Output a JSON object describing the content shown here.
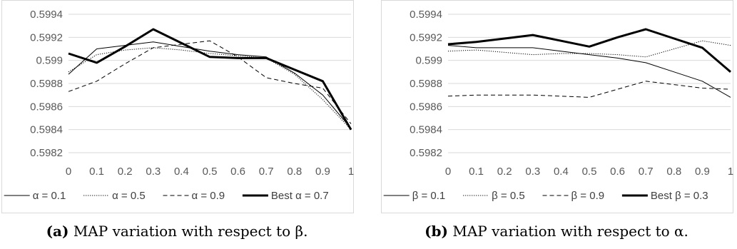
{
  "charts": [
    {
      "id": "a",
      "caption_label": "(a)",
      "caption_text": "MAP variation with respect to β.",
      "chart_data": {
        "type": "line",
        "x": [
          0,
          0.1,
          0.2,
          0.3,
          0.4,
          0.5,
          0.6,
          0.7,
          0.8,
          0.9,
          1
        ],
        "x_tick_labels": [
          "0",
          "0.1",
          "0.2",
          "0.3",
          "0.4",
          "0.5",
          "0.6",
          "0.7",
          "0.8",
          "0.9",
          "1"
        ],
        "ylim": [
          0.5982,
          0.5994
        ],
        "y_ticks": [
          0.5982,
          0.5984,
          0.5986,
          0.5988,
          0.599,
          0.5992,
          0.5994
        ],
        "y_tick_labels": [
          "0.5982",
          "0.5984",
          "0.5986",
          "0.5988",
          "0.599",
          "0.5992",
          "0.5994"
        ],
        "grid": "horizontal",
        "legend": "bottom",
        "series": [
          {
            "name": "α = 0.1",
            "style": "solid",
            "width": 1,
            "values": [
              0.59888,
              0.5991,
              0.59913,
              0.59916,
              0.59912,
              0.59908,
              0.59905,
              0.59903,
              0.59889,
              0.5987,
              0.59841
            ]
          },
          {
            "name": "α = 0.5",
            "style": "dotted",
            "width": 1,
            "values": [
              0.5989,
              0.59905,
              0.59909,
              0.59911,
              0.59909,
              0.59906,
              0.59904,
              0.59902,
              0.59888,
              0.59866,
              0.5984
            ]
          },
          {
            "name": "α = 0.9",
            "style": "dashed",
            "width": 1,
            "values": [
              0.59873,
              0.59882,
              0.59897,
              0.59911,
              0.59914,
              0.59917,
              0.59903,
              0.59885,
              0.5988,
              0.59876,
              0.59845
            ]
          },
          {
            "name": "Best α = 0.7",
            "style": "solid",
            "width": 3,
            "values": [
              0.59906,
              0.59898,
              0.59912,
              0.59927,
              0.59915,
              0.59903,
              0.59902,
              0.59902,
              0.59892,
              0.59882,
              0.5984
            ]
          }
        ]
      }
    },
    {
      "id": "b",
      "caption_label": "(b)",
      "caption_text": "MAP variation with respect to α.",
      "chart_data": {
        "type": "line",
        "x": [
          0,
          0.1,
          0.2,
          0.3,
          0.4,
          0.5,
          0.6,
          0.7,
          0.8,
          0.9,
          1
        ],
        "x_tick_labels": [
          "0",
          "0.1",
          "0.2",
          "0.3",
          "0.4",
          "0.5",
          "0.6",
          "0.7",
          "0.8",
          "0.9",
          "1"
        ],
        "ylim": [
          0.5982,
          0.5994
        ],
        "y_ticks": [
          0.5982,
          0.5984,
          0.5986,
          0.5988,
          0.599,
          0.5992,
          0.5994
        ],
        "y_tick_labels": [
          "0.5982",
          "0.5984",
          "0.5986",
          "0.5988",
          "0.599",
          "0.5992",
          "0.5994"
        ],
        "grid": "horizontal",
        "legend": "bottom",
        "series": [
          {
            "name": "β = 0.1",
            "style": "solid",
            "width": 1,
            "values": [
              0.59913,
              0.59911,
              0.59911,
              0.59911,
              0.59908,
              0.59905,
              0.59902,
              0.59898,
              0.5989,
              0.59882,
              0.59868
            ]
          },
          {
            "name": "β = 0.5",
            "style": "dotted",
            "width": 1,
            "values": [
              0.59908,
              0.59909,
              0.59907,
              0.59905,
              0.59906,
              0.59906,
              0.59905,
              0.59903,
              0.5991,
              0.59917,
              0.59913
            ]
          },
          {
            "name": "β = 0.9",
            "style": "dashed",
            "width": 1,
            "values": [
              0.59869,
              0.5987,
              0.5987,
              0.5987,
              0.59869,
              0.59868,
              0.59875,
              0.59882,
              0.59879,
              0.59876,
              0.59875
            ]
          },
          {
            "name": "Best β = 0.3",
            "style": "solid",
            "width": 3,
            "values": [
              0.59914,
              0.59916,
              0.59919,
              0.59922,
              0.59917,
              0.59912,
              0.5992,
              0.59927,
              0.59919,
              0.59911,
              0.5989
            ]
          }
        ]
      }
    }
  ]
}
